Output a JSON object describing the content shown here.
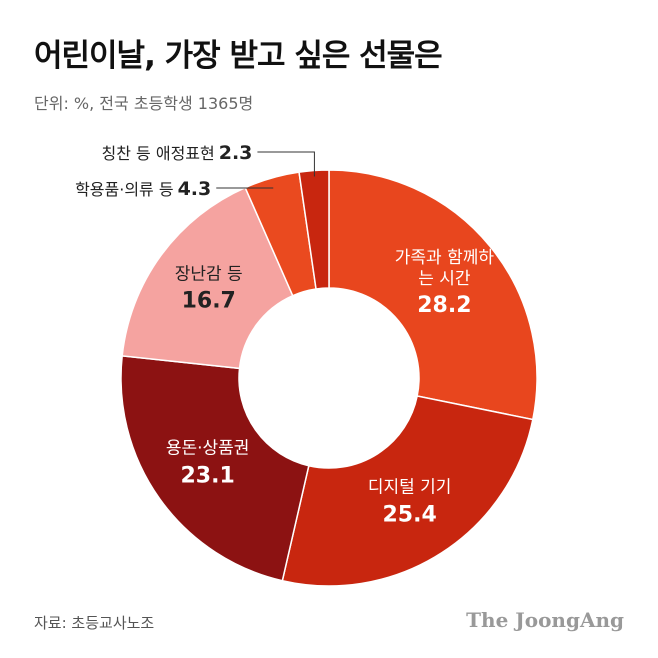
{
  "chart_data": {
    "type": "donut",
    "title": "어린이날, 가장 받고 싶은 선물은",
    "subtitle": "단위: %, 전국 초등학생 1365명",
    "categories": [
      "가족과 함께하는 시간",
      "디지털 기기",
      "용돈·상품권",
      "장난감 등",
      "학용품·의류 등",
      "칭찬 등 애정표현"
    ],
    "values": [
      28.2,
      25.4,
      23.1,
      16.7,
      4.3,
      2.3
    ],
    "colors": [
      "#e8461e",
      "#c8260f",
      "#8c1212",
      "#f5a3a0",
      "#ea4a1f",
      "#c8260f"
    ],
    "source": "자료: 초등교사노조",
    "brand": "The JoongAng"
  }
}
